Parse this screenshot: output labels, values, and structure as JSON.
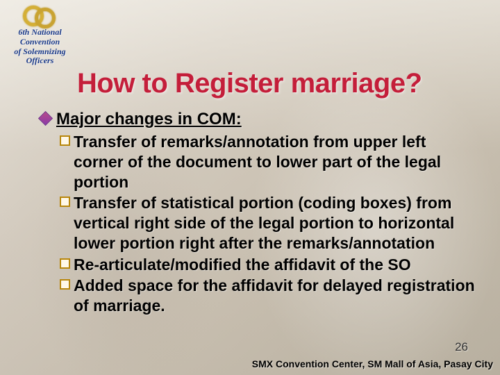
{
  "logo": {
    "line1": "6th National",
    "line2": "Convention",
    "line3": "of Solemnizing",
    "line4": "Officers",
    "ring_color_outer": "#d4af37",
    "ring_color_inner": "#c9a332",
    "text_color": "#1a3a8a"
  },
  "title": {
    "text": "How to Register marriage?",
    "color": "#c41e3a",
    "fontsize": 40
  },
  "content": {
    "major_bullet_color": "#8a3aa8",
    "sub_bullet_border": "#b8860b",
    "major_label": "Major changes in COM:",
    "items": [
      "Transfer of remarks/annotation from upper left corner of the document to lower part of the legal portion",
      "Transfer of statistical portion (coding boxes) from vertical right side of the legal portion to horizontal lower portion right after the remarks/annotation",
      "Re-articulate/modified the affidavit of the SO",
      "Added space for the affidavit for delayed registration of marriage."
    ],
    "major_fontsize": 24,
    "item_fontsize": 23
  },
  "page_number": "26",
  "footer": "SMX Convention Center, SM Mall of Asia, Pasay City",
  "background": {
    "base_gradient": [
      "#e8e4dc",
      "#d4ccc0",
      "#c8bfb0",
      "#b8b0a0"
    ]
  }
}
